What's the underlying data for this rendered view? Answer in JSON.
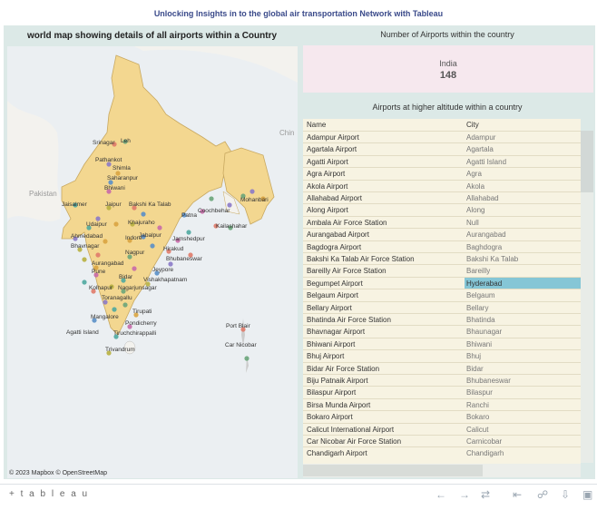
{
  "title": "Unlocking Insights in to the global air transportation  Network with Tableau",
  "map": {
    "title": "world map showing details of all airports within a Country",
    "attribution": "© 2023 Mapbox  © OpenStreetMap",
    "labels": {
      "pakistan": "Pakistan",
      "china": "Chin"
    },
    "cities": [
      "Srinagar",
      "Leh",
      "Pathankot",
      "Shimla",
      "Saharanpur",
      "Bhiwani",
      "Jaisalmer",
      "Jaipur",
      "Bakshi Ka Talab",
      "Mohanbari",
      "Patna",
      "Coochbehar",
      "Udaipur",
      "Khajuraho",
      "Kailashahar",
      "Ahmedabad",
      "Indore",
      "Jabalpur",
      "Jamshedpur",
      "Bhavnagar",
      "Hirakud",
      "Nagpur",
      "Bhubaneswar",
      "Aurangabad",
      "Jeypore",
      "Pune",
      "Bidar",
      "Vishakhapatnam",
      "Kolhapur",
      "Nagarjunsagar",
      "Toranagallu",
      "Tirupati",
      "Mangalore",
      "Pondicherry",
      "Agatti Island",
      "Tiruchchirappalli",
      "Port Blair",
      "Car Nicobar",
      "Trivandrum"
    ]
  },
  "count_panel": {
    "title": "Number of Airports within the country",
    "country": "India",
    "count": "148"
  },
  "table": {
    "title": "Airports at higher altitude within a country",
    "headers": [
      "Name",
      "City"
    ],
    "rows": [
      [
        "Adampur Airport",
        "Adampur"
      ],
      [
        "Agartala Airport",
        "Agartala"
      ],
      [
        "Agatti Airport",
        "Agatti Island"
      ],
      [
        "Agra Airport",
        "Agra"
      ],
      [
        "Akola Airport",
        "Akola"
      ],
      [
        "Allahabad Airport",
        "Allahabad"
      ],
      [
        "Along Airport",
        "Along"
      ],
      [
        "Ambala Air Force Station",
        "Null"
      ],
      [
        "Aurangabad Airport",
        "Aurangabad"
      ],
      [
        "Bagdogra Airport",
        "Baghdogra"
      ],
      [
        "Bakshi Ka Talab Air Force Station",
        "Bakshi Ka Talab"
      ],
      [
        "Bareilly Air Force Station",
        "Bareilly"
      ],
      [
        "Begumpet Airport",
        "Hyderabad"
      ],
      [
        "Belgaum Airport",
        "Belgaum"
      ],
      [
        "Bellary Airport",
        "Bellary"
      ],
      [
        "Bhatinda Air Force Station",
        "Bhatinda"
      ],
      [
        "Bhavnagar Airport",
        "Bhaunagar"
      ],
      [
        "Bhiwani Airport",
        "Bhiwani"
      ],
      [
        "Bhuj Airport",
        "Bhuj"
      ],
      [
        "Bidar Air Force Station",
        "Bidar"
      ],
      [
        "Biju Patnaik Airport",
        "Bhubaneswar"
      ],
      [
        "Bilaspur Airport",
        "Bilaspur"
      ],
      [
        "Birsa Munda Airport",
        "Ranchi"
      ],
      [
        "Bokaro Airport",
        "Bokaro"
      ],
      [
        "Calicut International Airport",
        "Calicut"
      ],
      [
        "Car Nicobar Air Force Station",
        "Carnicobar"
      ],
      [
        "Chandigarh Airport",
        "Chandigarh"
      ]
    ],
    "selected_row": 12
  },
  "footer": {
    "logo": "+ t a b l e a u",
    "icons": [
      "undo-icon",
      "redo-icon",
      "revert-icon",
      "pause-icon",
      "share-icon",
      "download-icon",
      "fullscreen-icon"
    ]
  }
}
